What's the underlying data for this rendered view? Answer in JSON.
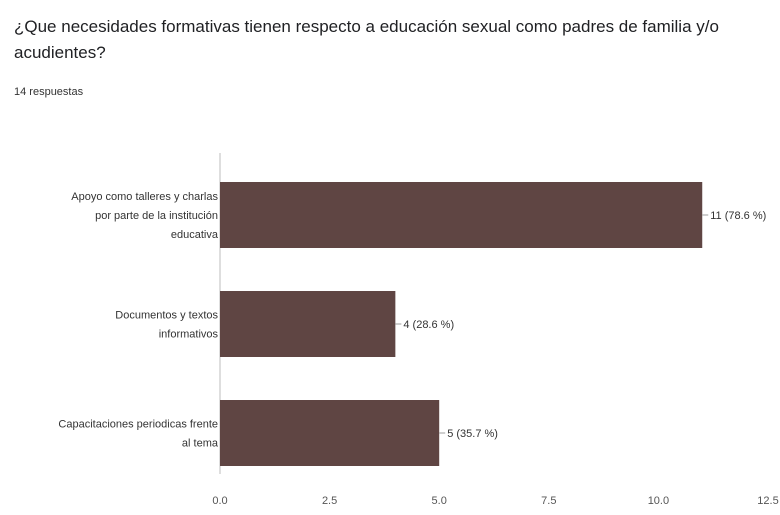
{
  "question": {
    "title": "¿Que necesidades formativas tienen respecto a educación sexual como padres de familia y/o acudientes?",
    "responses": "14 respuestas"
  },
  "chart_data": {
    "type": "bar",
    "orientation": "horizontal",
    "categories": [
      [
        "Apoyo como talleres y charlas",
        "por parte de la institución",
        "educativa"
      ],
      [
        "Documentos y textos",
        "informativos"
      ],
      [
        "Capacitaciones periodicas frente",
        "al tema"
      ]
    ],
    "values": [
      11,
      4,
      5
    ],
    "data_labels": [
      "11 (78.6 %)",
      "4 (28.6 %)",
      "5 (35.7 %)"
    ],
    "xlim": [
      0,
      12.5
    ],
    "xticks": [
      "0.0",
      "2.5",
      "5.0",
      "7.5",
      "10.0",
      "12.5"
    ],
    "grid": false,
    "bar_color": "#5f4543",
    "axis_color": "#bdbdbd"
  }
}
